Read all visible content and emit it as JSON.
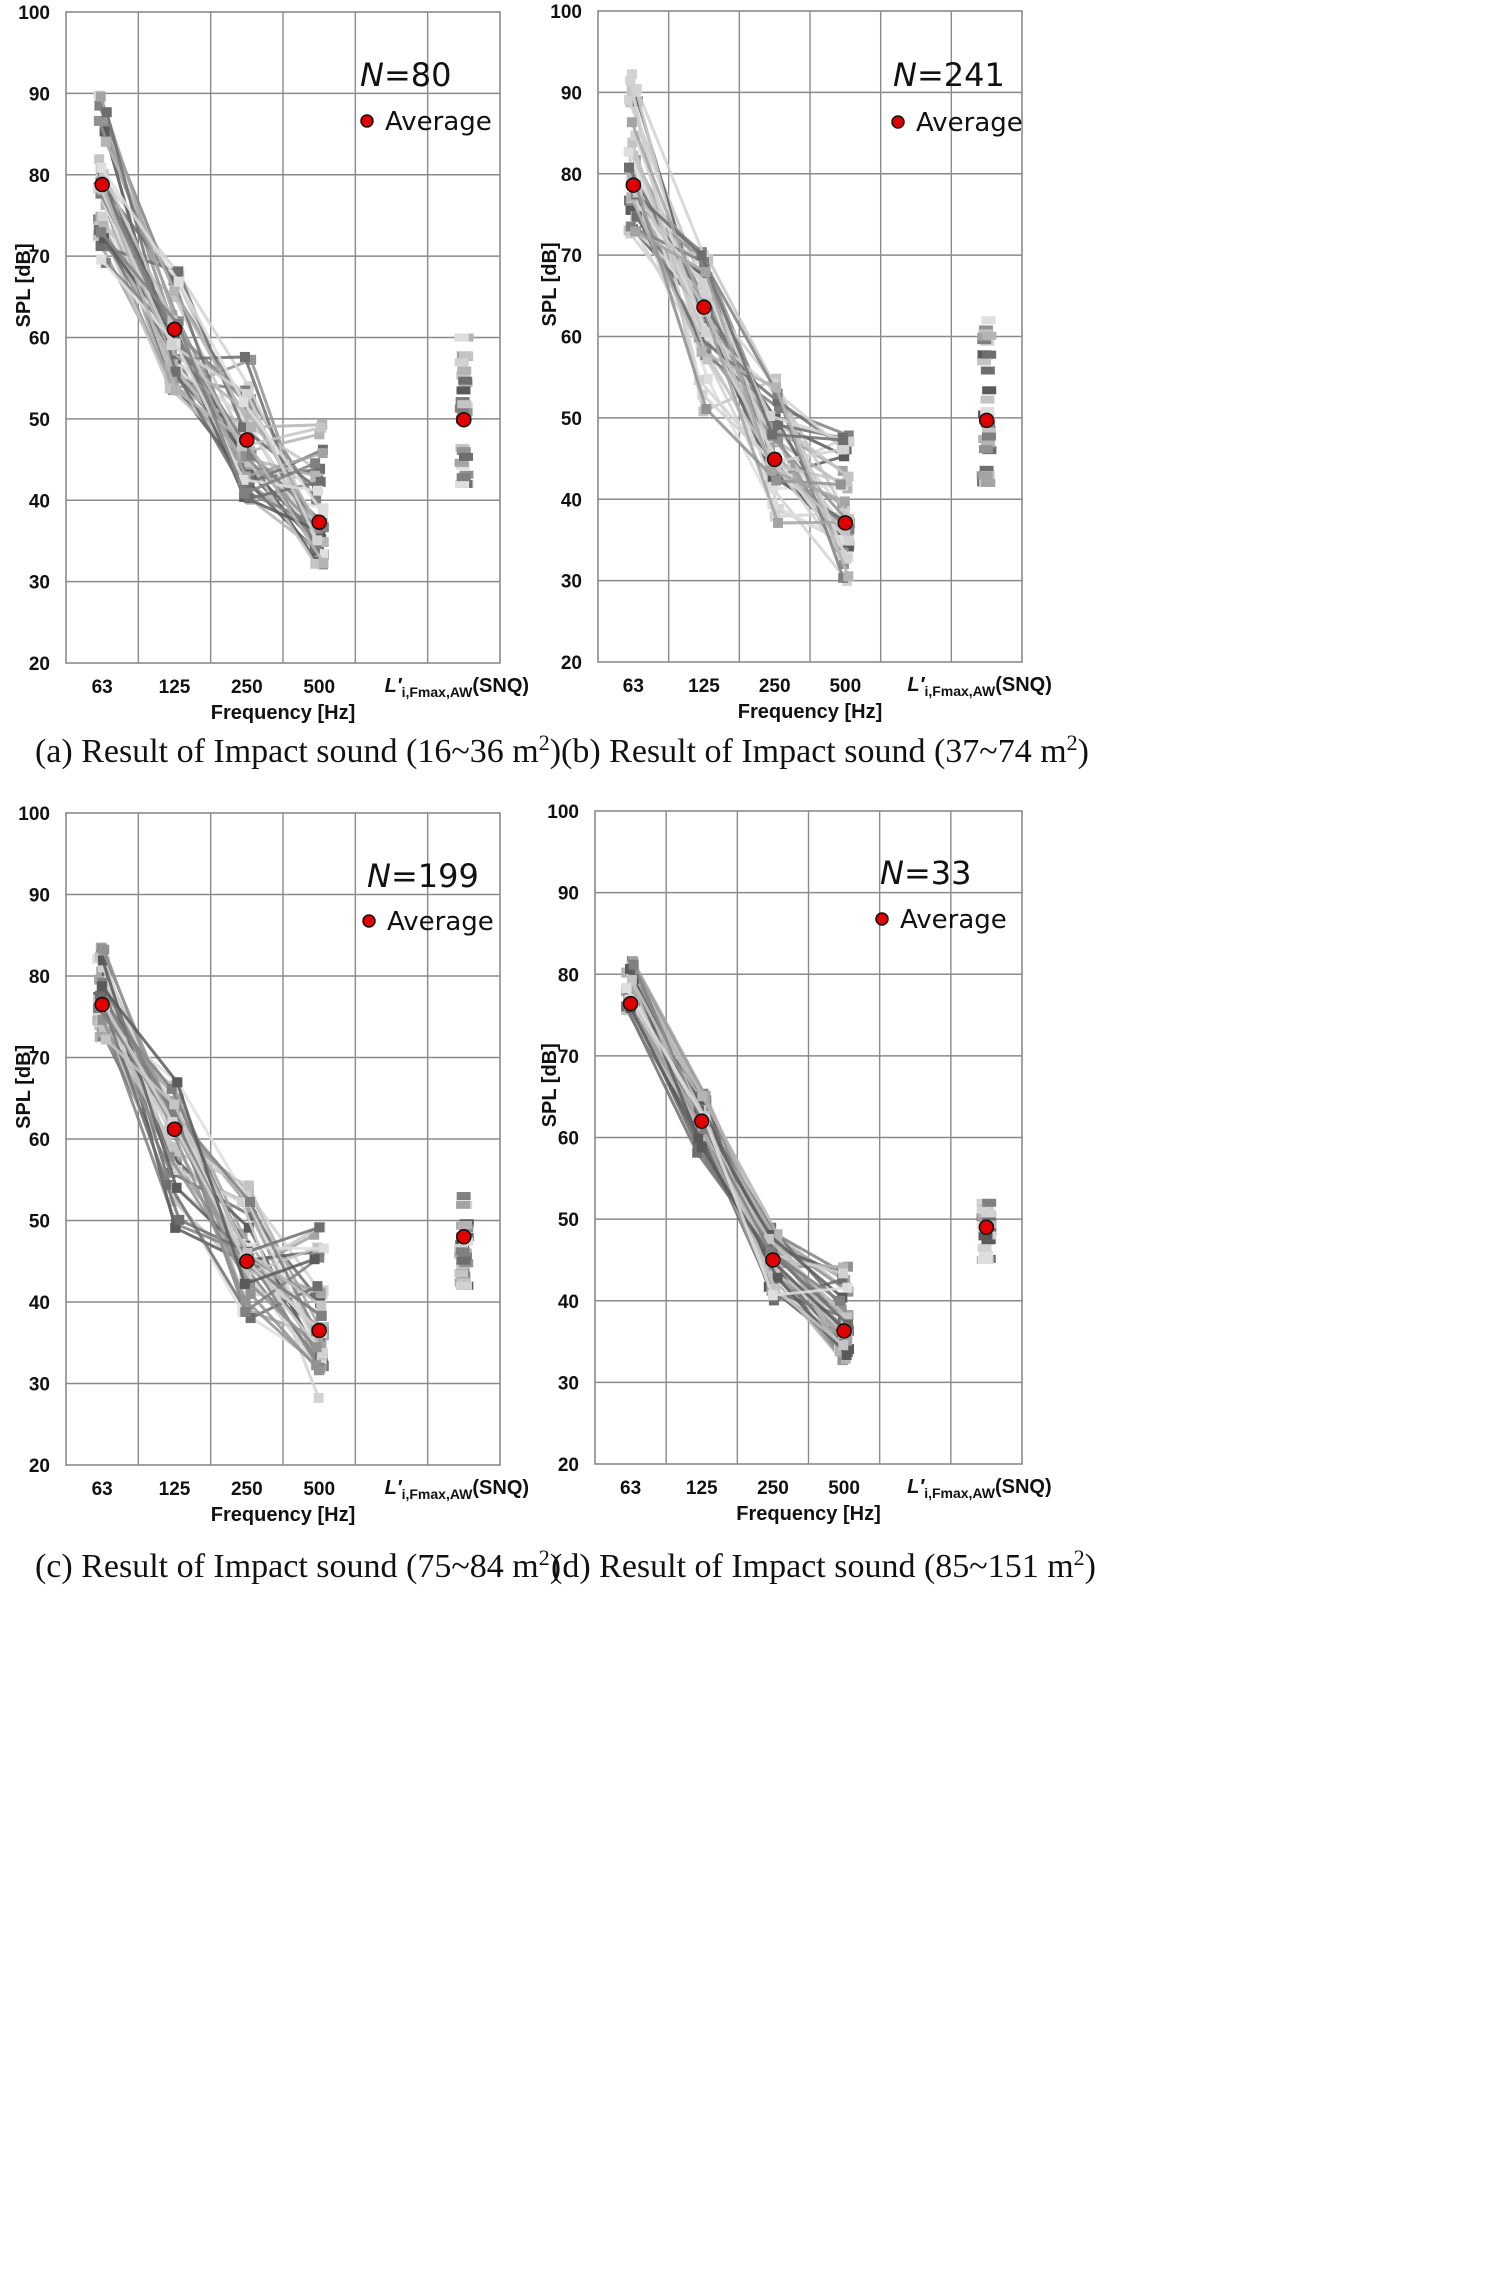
{
  "chart_data": [
    {
      "type": "line",
      "caption": "(a) Result of Impact sound (16~36 m",
      "caption_sup": "2",
      "caption_end": ")",
      "n_label": "N",
      "n_value": "=80",
      "legend": "Average",
      "ylabel": "SPL [dB]",
      "xlabel": "Frequency [Hz]",
      "ylim": [
        20,
        100
      ],
      "yticks": [
        "100",
        "90",
        "80",
        "70",
        "60",
        "50",
        "40",
        "30",
        "20"
      ],
      "categories": [
        "63",
        "125",
        "250",
        "500"
      ],
      "snq_label": {
        "main": "L′",
        "sub": "i,Fmax,AW",
        "tail": "(SNQ)"
      },
      "average": [
        78.8,
        61.0,
        47.4,
        37.3
      ],
      "average_snq": 49.9,
      "spread": {
        "low": [
          69,
          52.5,
          40,
          31.5
        ],
        "high": [
          90,
          69,
          58,
          50
        ]
      },
      "snq_range": [
        42,
        60
      ]
    },
    {
      "type": "line",
      "caption": "(b) Result of Impact sound (37~74 m",
      "caption_sup": "2",
      "caption_end": ")",
      "n_label": "N",
      "n_value": "=241",
      "legend": "Average",
      "ylabel": "SPL [dB]",
      "xlabel": "Frequency [Hz]",
      "ylim": [
        20,
        100
      ],
      "yticks": [
        "100",
        "90",
        "80",
        "70",
        "60",
        "50",
        "40",
        "30",
        "20"
      ],
      "categories": [
        "63",
        "125",
        "250",
        "500"
      ],
      "snq_label": {
        "main": "L′",
        "sub": "i,Fmax,AW",
        "tail": "(SNQ)"
      },
      "average": [
        78.6,
        63.6,
        44.9,
        37.1
      ],
      "average_snq": 49.7,
      "spread": {
        "low": [
          72,
          50,
          37,
          29
        ],
        "high": [
          92.5,
          70.5,
          55,
          48
        ]
      },
      "snq_range": [
        42,
        62
      ]
    },
    {
      "type": "line",
      "caption": "(c) Result of Impact sound (75~84 m",
      "caption_sup": "2",
      "caption_end": ")",
      "n_label": "N",
      "n_value": "=199",
      "legend": "Average",
      "ylabel": "SPL [dB]",
      "xlabel": "Frequency [Hz]",
      "ylim": [
        20,
        100
      ],
      "yticks": [
        "100",
        "90",
        "80",
        "70",
        "60",
        "50",
        "40",
        "30",
        "20"
      ],
      "categories": [
        "63",
        "125",
        "250",
        "500"
      ],
      "snq_label": {
        "main": "L′",
        "sub": "i,Fmax,AW",
        "tail": "(SNQ)"
      },
      "average": [
        76.5,
        61.2,
        45.0,
        36.5
      ],
      "average_snq": 48.0,
      "spread": {
        "low": [
          72,
          49,
          38,
          28
        ],
        "high": [
          84,
          67,
          54.5,
          50.5
        ]
      },
      "snq_range": [
        42,
        53
      ]
    },
    {
      "type": "line",
      "caption": "(d) Result of Impact sound (85~151 m",
      "caption_sup": "2",
      "caption_end": ")",
      "n_label": "N",
      "n_value": "=33",
      "legend": "Average",
      "ylabel": "SPL [dB]",
      "xlabel": "Frequency [Hz]",
      "ylim": [
        20,
        100
      ],
      "yticks": [
        "100",
        "90",
        "80",
        "70",
        "60",
        "50",
        "40",
        "30",
        "20"
      ],
      "categories": [
        "63",
        "125",
        "250",
        "500"
      ],
      "snq_label": {
        "main": "L′",
        "sub": "i,Fmax,AW",
        "tail": "(SNQ)"
      },
      "average": [
        76.4,
        62.0,
        45.0,
        36.3
      ],
      "average_snq": 49.0,
      "spread": {
        "low": [
          75,
          58,
          40,
          32.5
        ],
        "high": [
          82,
          65.5,
          49,
          45
        ]
      },
      "snq_range": [
        45,
        52
      ]
    }
  ]
}
